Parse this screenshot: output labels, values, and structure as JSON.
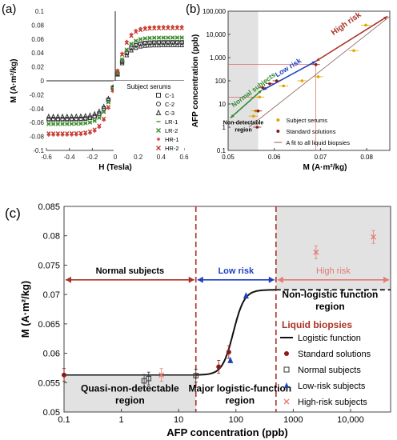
{
  "chart_data": [
    {
      "panel": "(a)",
      "type": "scatter",
      "xlabel": "H (Tesla)",
      "ylabel": "M (A·m²/kg)",
      "xlim": [
        -0.6,
        0.6
      ],
      "ylim": [
        -0.1,
        0.1
      ],
      "xticks": [
        "-0.6",
        "-0.4",
        "-0.2",
        "0",
        "0.2",
        "0.4",
        "0.6"
      ],
      "yticks": [
        "0.1",
        "0.08",
        "0.06",
        "0.04",
        "0.02",
        "0",
        "-0.02",
        "-0.04",
        "-0.06",
        "-0.08",
        "-0.1"
      ],
      "legend_title": "Subject serums",
      "legend_placement": "bottom-right",
      "series": [
        {
          "name": "C-1",
          "marker": "square",
          "color": "#333333",
          "sat": 0.057
        },
        {
          "name": "C-2",
          "marker": "circle",
          "color": "#333333",
          "sat": 0.055
        },
        {
          "name": "C-3",
          "marker": "triangle",
          "color": "#333333",
          "sat": 0.053
        },
        {
          "name": "LR-1",
          "marker": "dash",
          "color": "#6aa84f",
          "sat": 0.062
        },
        {
          "name": "LR-2",
          "marker": "x",
          "color": "#3b8f2e",
          "sat": 0.064
        },
        {
          "name": "HR-1",
          "marker": "diamond",
          "color": "#d9534f",
          "sat": 0.079
        },
        {
          "name": "HR-2",
          "marker": "x",
          "color": "#c0392b",
          "sat": 0.078
        }
      ]
    },
    {
      "panel": "(b)",
      "type": "scatter",
      "xlabel": "M (A·m²/kg)",
      "ylabel": "AFP concentration (ppb)",
      "xscale": "linear",
      "yscale": "log",
      "xlim": [
        0.05,
        0.085
      ],
      "ylim": [
        0.1,
        100000
      ],
      "xticks": [
        "0.05",
        "0.06",
        "0.07",
        "0.08"
      ],
      "yticks": [
        "0.1",
        "1",
        "10",
        "100",
        "1,000",
        "10,000",
        "100,000"
      ],
      "regions": [
        "Non-detectable region",
        "Normal subjects",
        "Low risk",
        "High risk"
      ],
      "legend": [
        "Subject serums",
        "Standard solutions",
        "A fit to all liquid biopsies"
      ],
      "standard_solutions": [
        [
          0.0563,
          1
        ],
        [
          0.0565,
          5
        ],
        [
          0.0575,
          50
        ],
        [
          0.059,
          75
        ],
        [
          0.0605,
          100
        ],
        [
          0.069,
          500
        ]
      ],
      "subject_serums": [
        [
          0.0555,
          3
        ],
        [
          0.056,
          5
        ],
        [
          0.0568,
          20
        ],
        [
          0.062,
          60
        ],
        [
          0.066,
          100
        ],
        [
          0.0695,
          150
        ],
        [
          0.0772,
          2000
        ],
        [
          0.0798,
          25000
        ]
      ],
      "fit_line": [
        [
          0.0545,
          1
        ],
        [
          0.085,
          60000
        ]
      ]
    },
    {
      "panel": "(c)",
      "type": "line",
      "xlabel": "AFP concentration (ppb)",
      "ylabel": "M (A·m²/kg)",
      "xscale": "log",
      "xlim": [
        0.1,
        50000
      ],
      "ylim": [
        0.05,
        0.085
      ],
      "xticks": [
        "0.1",
        "1",
        "10",
        "100",
        "1000",
        "10,000"
      ],
      "yticks": [
        "0.085",
        "0.08",
        "0.075",
        "0.07",
        "0.065",
        "0.06",
        "0.055",
        "0.05"
      ],
      "region_labels": {
        "normal": "Normal subjects",
        "low": "Low risk",
        "high": "High risk",
        "quasi": "Quasi-non-detectable region",
        "major": "Major logistic-function region",
        "nonlog": "Non-logistic function region"
      },
      "boundaries": [
        20,
        500
      ],
      "logistic": {
        "bottom": 0.0563,
        "top": 0.0708,
        "x0": 90,
        "slope": 4.5
      },
      "legend_title": "Liquid biopsies",
      "legend": [
        "Logistic function",
        "Standard solutions",
        "Normal subjects",
        "Low-risk subjects",
        "High-risk subjects"
      ],
      "standard_solutions": [
        [
          0.1,
          0.0563
        ],
        [
          50,
          0.0577
        ],
        [
          75,
          0.0602
        ]
      ],
      "normal_subjects": [
        [
          2.5,
          0.0553
        ],
        [
          3,
          0.0557
        ],
        [
          20,
          0.0562
        ]
      ],
      "low_risk_subjects": [
        [
          80,
          0.0588
        ],
        [
          150,
          0.0698
        ]
      ],
      "high_risk_subjects": [
        [
          5,
          0.0563
        ],
        [
          2500,
          0.0772
        ],
        [
          25000,
          0.0798
        ]
      ],
      "colors": {
        "standard": "#8b1a1a",
        "normal": "#333333",
        "low": "#1f3fbf",
        "high": "#e37b73",
        "boundary": "#a93226",
        "grid_shade": "#e2e2e2"
      }
    }
  ],
  "panel_labels": {
    "a": "(a)",
    "b": "(b)",
    "c": "(c)"
  }
}
